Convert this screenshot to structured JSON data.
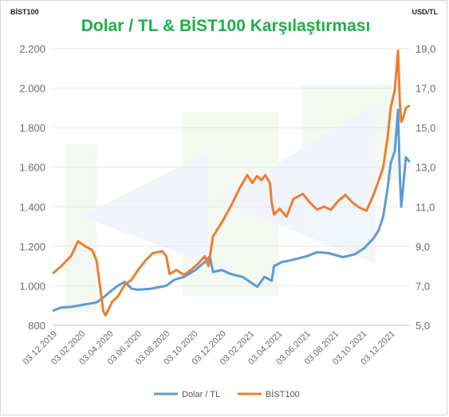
{
  "chart_data": {
    "type": "line",
    "title": "Dolar / TL & BİST100 Karşılaştırması",
    "y_left_label": "BİST100",
    "y_right_label": "USD/TL",
    "y_left_ticks": [
      "800",
      "1.000",
      "1.200",
      "1.400",
      "1.600",
      "1.800",
      "2.000",
      "2.200"
    ],
    "y_right_ticks": [
      "5,0",
      "7,0",
      "9,0",
      "11,0",
      "13,0",
      "15,0",
      "17,0",
      "19,0"
    ],
    "y_left_range": [
      800,
      2200
    ],
    "y_right_range": [
      5,
      19
    ],
    "x_ticks": [
      "03.12.2019",
      "03.02.2020",
      "03.04.2020",
      "03.06.2020",
      "03.08.2020",
      "03.10.2020",
      "03.12.2020",
      "03.02.2021",
      "03.04.2021",
      "03.06.2021",
      "03.08.2021",
      "03.10.2021",
      "03.12.2021"
    ],
    "x_range": [
      "2019-12-03",
      "2022-01-10"
    ],
    "grid": "horizontal",
    "legend_position": "bottom",
    "series": [
      {
        "name": "Dolar / TL",
        "axis": "right",
        "color": "#5b9bd5",
        "points": [
          [
            "2019-12-03",
            5.75
          ],
          [
            "2019-12-20",
            5.9
          ],
          [
            "2020-01-10",
            5.93
          ],
          [
            "2020-02-03",
            6.03
          ],
          [
            "2020-02-20",
            6.1
          ],
          [
            "2020-03-05",
            6.15
          ],
          [
            "2020-03-20",
            6.4
          ],
          [
            "2020-04-03",
            6.7
          ],
          [
            "2020-04-20",
            7.0
          ],
          [
            "2020-05-05",
            7.2
          ],
          [
            "2020-05-20",
            6.85
          ],
          [
            "2020-06-03",
            6.8
          ],
          [
            "2020-07-01",
            6.85
          ],
          [
            "2020-08-03",
            7.0
          ],
          [
            "2020-08-20",
            7.3
          ],
          [
            "2020-09-10",
            7.45
          ],
          [
            "2020-10-05",
            7.8
          ],
          [
            "2020-10-25",
            8.2
          ],
          [
            "2020-11-05",
            8.5
          ],
          [
            "2020-11-12",
            7.7
          ],
          [
            "2020-12-01",
            7.8
          ],
          [
            "2020-12-20",
            7.6
          ],
          [
            "2021-01-15",
            7.45
          ],
          [
            "2021-02-03",
            7.15
          ],
          [
            "2021-02-16",
            6.95
          ],
          [
            "2021-03-03",
            7.45
          ],
          [
            "2021-03-19",
            7.25
          ],
          [
            "2021-03-24",
            8.0
          ],
          [
            "2021-04-10",
            8.2
          ],
          [
            "2021-05-01",
            8.3
          ],
          [
            "2021-06-03",
            8.5
          ],
          [
            "2021-06-25",
            8.7
          ],
          [
            "2021-07-20",
            8.65
          ],
          [
            "2021-08-20",
            8.45
          ],
          [
            "2021-09-15",
            8.6
          ],
          [
            "2021-10-05",
            8.9
          ],
          [
            "2021-10-25",
            9.4
          ],
          [
            "2021-11-05",
            9.8
          ],
          [
            "2021-11-15",
            10.5
          ],
          [
            "2021-11-25",
            12.0
          ],
          [
            "2021-12-01",
            13.2
          ],
          [
            "2021-12-10",
            13.8
          ],
          [
            "2021-12-17",
            15.9
          ],
          [
            "2021-12-21",
            12.5
          ],
          [
            "2021-12-24",
            11.0
          ],
          [
            "2021-12-28",
            12.0
          ],
          [
            "2022-01-03",
            13.5
          ],
          [
            "2022-01-10",
            13.3
          ]
        ]
      },
      {
        "name": "BİST100",
        "axis": "left",
        "color": "#ed7d31",
        "points": [
          [
            "2019-12-03",
            1065
          ],
          [
            "2019-12-20",
            1100
          ],
          [
            "2020-01-10",
            1150
          ],
          [
            "2020-01-25",
            1225
          ],
          [
            "2020-02-10",
            1200
          ],
          [
            "2020-02-25",
            1180
          ],
          [
            "2020-03-05",
            1130
          ],
          [
            "2020-03-12",
            1010
          ],
          [
            "2020-03-20",
            870
          ],
          [
            "2020-03-25",
            850
          ],
          [
            "2020-04-08",
            920
          ],
          [
            "2020-04-20",
            945
          ],
          [
            "2020-05-05",
            1005
          ],
          [
            "2020-05-20",
            1030
          ],
          [
            "2020-06-03",
            1080
          ],
          [
            "2020-06-20",
            1130
          ],
          [
            "2020-07-05",
            1165
          ],
          [
            "2020-07-25",
            1175
          ],
          [
            "2020-08-03",
            1150
          ],
          [
            "2020-08-10",
            1060
          ],
          [
            "2020-08-25",
            1080
          ],
          [
            "2020-09-10",
            1055
          ],
          [
            "2020-09-25",
            1080
          ],
          [
            "2020-10-10",
            1110
          ],
          [
            "2020-10-25",
            1150
          ],
          [
            "2020-11-02",
            1100
          ],
          [
            "2020-11-12",
            1250
          ],
          [
            "2020-12-01",
            1320
          ],
          [
            "2020-12-20",
            1400
          ],
          [
            "2021-01-10",
            1500
          ],
          [
            "2021-01-25",
            1560
          ],
          [
            "2021-02-05",
            1520
          ],
          [
            "2021-02-15",
            1555
          ],
          [
            "2021-02-25",
            1535
          ],
          [
            "2021-03-05",
            1560
          ],
          [
            "2021-03-15",
            1520
          ],
          [
            "2021-03-19",
            1420
          ],
          [
            "2021-03-24",
            1360
          ],
          [
            "2021-04-05",
            1390
          ],
          [
            "2021-04-20",
            1350
          ],
          [
            "2021-05-05",
            1440
          ],
          [
            "2021-05-25",
            1465
          ],
          [
            "2021-06-10",
            1420
          ],
          [
            "2021-06-25",
            1385
          ],
          [
            "2021-07-10",
            1400
          ],
          [
            "2021-07-25",
            1385
          ],
          [
            "2021-08-10",
            1430
          ],
          [
            "2021-08-25",
            1460
          ],
          [
            "2021-09-10",
            1420
          ],
          [
            "2021-09-25",
            1395
          ],
          [
            "2021-10-10",
            1380
          ],
          [
            "2021-10-25",
            1460
          ],
          [
            "2021-11-05",
            1530
          ],
          [
            "2021-11-15",
            1600
          ],
          [
            "2021-11-25",
            1760
          ],
          [
            "2021-12-01",
            1900
          ],
          [
            "2021-12-10",
            1990
          ],
          [
            "2021-12-17",
            2190
          ],
          [
            "2021-12-21",
            1920
          ],
          [
            "2021-12-24",
            1830
          ],
          [
            "2021-12-28",
            1850
          ],
          [
            "2022-01-03",
            1900
          ],
          [
            "2022-01-10",
            1910
          ]
        ]
      }
    ]
  }
}
